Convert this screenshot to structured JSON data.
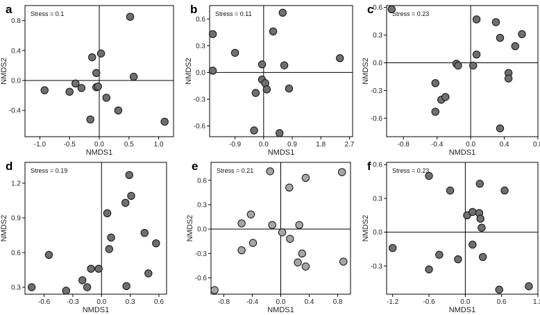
{
  "figure": {
    "point_fill_dark": "#6f6f6f",
    "point_fill_light": "#a6a6a6",
    "point_stroke": "#111111",
    "frame_color": "#000000"
  },
  "chart_data": [
    {
      "panel": "a",
      "type": "scatter",
      "stress": "Stress = 0.1",
      "xlabel": "NMDS1",
      "ylabel": "NMDS2",
      "xlim": [
        -1.25,
        1.25
      ],
      "ylim": [
        -0.75,
        1.0
      ],
      "xticks": [
        -1.0,
        -0.5,
        0.0,
        0.5,
        1.0
      ],
      "xticklabels": [
        "-1.0",
        "-0.5",
        "0.0",
        "0.5",
        "1.0"
      ],
      "yticks": [
        -0.4,
        0.0,
        0.4,
        0.8
      ],
      "yticklabels": [
        "-0.4",
        "0.0",
        "0.4",
        "0.8"
      ],
      "fill": "dark",
      "points": [
        [
          -0.92,
          -0.13
        ],
        [
          -0.5,
          -0.15
        ],
        [
          -0.4,
          -0.04
        ],
        [
          -0.3,
          -0.1
        ],
        [
          -0.15,
          -0.52
        ],
        [
          -0.12,
          0.31
        ],
        [
          -0.05,
          0.1
        ],
        [
          -0.05,
          -0.09
        ],
        [
          -0.02,
          -0.08
        ],
        [
          0.03,
          0.36
        ],
        [
          0.12,
          -0.23
        ],
        [
          0.32,
          -0.4
        ],
        [
          0.52,
          0.85
        ],
        [
          0.58,
          0.05
        ],
        [
          1.1,
          -0.55
        ]
      ]
    },
    {
      "panel": "b",
      "type": "scatter",
      "stress": "Stress = 0.11",
      "xlabel": "NMDS1",
      "ylabel": "NMDS2",
      "xlim": [
        -1.7,
        2.8
      ],
      "ylim": [
        -0.72,
        0.75
      ],
      "xticks": [
        -0.9,
        0.0,
        0.9,
        1.8,
        2.7
      ],
      "xticklabels": [
        "-0.9",
        "0.0",
        "0.9",
        "1.8",
        "2.7"
      ],
      "yticks": [
        -0.6,
        -0.3,
        0.0,
        0.3,
        0.6
      ],
      "yticklabels": [
        "-0.6",
        "-0.3",
        "0.0",
        "0.3",
        "0.6"
      ],
      "fill": "dark",
      "points": [
        [
          -1.6,
          0.43
        ],
        [
          -1.6,
          0.02
        ],
        [
          -0.9,
          0.22
        ],
        [
          -0.3,
          -0.65
        ],
        [
          -0.25,
          -0.23
        ],
        [
          -0.05,
          0.09
        ],
        [
          -0.05,
          -0.08
        ],
        [
          0.05,
          -0.12
        ],
        [
          0.1,
          -0.19
        ],
        [
          0.3,
          0.46
        ],
        [
          0.5,
          -0.68
        ],
        [
          0.6,
          0.67
        ],
        [
          0.65,
          0.08
        ],
        [
          0.8,
          -0.18
        ],
        [
          2.4,
          0.16
        ]
      ]
    },
    {
      "panel": "c",
      "type": "scatter",
      "stress": "Stress = 0.23",
      "xlabel": "NMDS1",
      "ylabel": "NMDS2",
      "xlim": [
        -1.0,
        0.8
      ],
      "ylim": [
        -0.8,
        0.62
      ],
      "xticks": [
        -0.8,
        -0.4,
        0.0,
        0.4,
        0.8
      ],
      "xticklabels": [
        "-0.8",
        "-0.4",
        "0.0",
        "0.4",
        "0.8"
      ],
      "yticks": [
        -0.6,
        -0.3,
        0.0,
        0.3,
        0.6
      ],
      "yticklabels": [
        "-0.6",
        "-0.3",
        "0.0",
        "0.3",
        "0.6"
      ],
      "fill": "dark",
      "points": [
        [
          -0.94,
          0.58
        ],
        [
          -0.42,
          -0.22
        ],
        [
          -0.42,
          -0.53
        ],
        [
          -0.35,
          -0.4
        ],
        [
          -0.3,
          -0.37
        ],
        [
          -0.17,
          -0.01
        ],
        [
          -0.15,
          -0.03
        ],
        [
          0.03,
          -0.03
        ],
        [
          0.07,
          0.47
        ],
        [
          0.07,
          0.09
        ],
        [
          0.3,
          0.44
        ],
        [
          0.35,
          0.27
        ],
        [
          0.35,
          -0.71
        ],
        [
          0.45,
          -0.11
        ],
        [
          0.45,
          -0.17
        ],
        [
          0.53,
          0.18
        ],
        [
          0.61,
          0.31
        ]
      ]
    },
    {
      "panel": "d",
      "type": "scatter",
      "stress": "Stress = 0.19",
      "xlabel": "NMDS1",
      "ylabel": "NMDS2",
      "xlim": [
        -0.8,
        0.68
      ],
      "ylim": [
        0.24,
        1.38
      ],
      "xticks": [
        -0.6,
        -0.3,
        0.0,
        0.3,
        0.6
      ],
      "xticklabels": [
        "-0.6",
        "-0.3",
        "0.0",
        "0.3",
        "0.6"
      ],
      "yticks": [
        0.3,
        0.6,
        0.9,
        1.2
      ],
      "yticklabels": [
        "0.3",
        "0.6",
        "0.9",
        "1.2"
      ],
      "fill": "dark",
      "points": [
        [
          -0.73,
          0.3
        ],
        [
          -0.55,
          0.58
        ],
        [
          -0.37,
          0.27
        ],
        [
          -0.2,
          0.36
        ],
        [
          -0.15,
          0.3
        ],
        [
          -0.11,
          0.46
        ],
        [
          -0.03,
          0.46
        ],
        [
          0.06,
          0.94
        ],
        [
          0.08,
          0.63
        ],
        [
          0.1,
          0.73
        ],
        [
          0.25,
          1.03
        ],
        [
          0.26,
          0.31
        ],
        [
          0.29,
          1.27
        ],
        [
          0.31,
          1.09
        ],
        [
          0.45,
          0.77
        ],
        [
          0.49,
          0.42
        ],
        [
          0.57,
          0.68
        ]
      ]
    },
    {
      "panel": "e",
      "type": "scatter",
      "stress": "Stress = 0.21",
      "xlabel": "NMDS1",
      "ylabel": "NMDS2",
      "xlim": [
        -0.98,
        0.98
      ],
      "ylim": [
        -0.8,
        0.82
      ],
      "xticks": [
        -0.8,
        -0.4,
        0.0,
        0.4,
        0.8
      ],
      "xticklabels": [
        "-0.8",
        "-0.4",
        "0.0",
        "0.4",
        "0.8"
      ],
      "yticks": [
        -0.6,
        -0.3,
        0.0,
        0.3,
        0.6
      ],
      "yticklabels": [
        "-0.6",
        "-0.3",
        "0.0",
        "0.3",
        "0.6"
      ],
      "fill": "light",
      "points": [
        [
          -0.93,
          -0.75
        ],
        [
          -0.55,
          0.07
        ],
        [
          -0.55,
          -0.26
        ],
        [
          -0.42,
          0.18
        ],
        [
          -0.39,
          -0.17
        ],
        [
          -0.15,
          0.71
        ],
        [
          -0.12,
          0.05
        ],
        [
          0.02,
          -0.04
        ],
        [
          0.12,
          0.51
        ],
        [
          0.13,
          -0.12
        ],
        [
          0.24,
          -0.41
        ],
        [
          0.26,
          0.05
        ],
        [
          0.3,
          -0.3
        ],
        [
          0.35,
          0.63
        ],
        [
          0.35,
          -0.46
        ],
        [
          0.86,
          0.7
        ],
        [
          0.88,
          -0.4
        ]
      ]
    },
    {
      "panel": "f",
      "type": "scatter",
      "stress": "Stress = 0.23",
      "xlabel": "NMDS1",
      "ylabel": "NMDS2",
      "xlim": [
        -1.3,
        1.2
      ],
      "ylim": [
        -0.55,
        0.62
      ],
      "xticks": [
        -1.2,
        -0.6,
        0.0,
        0.6,
        1.2
      ],
      "xticklabels": [
        "-1.2",
        "-0.6",
        "0.0",
        "0.6",
        "1.2"
      ],
      "yticks": [
        -0.3,
        0.0,
        0.3,
        0.6
      ],
      "yticklabels": [
        "-0.3",
        "0.0",
        "0.3",
        "0.6"
      ],
      "fill": "dark",
      "points": [
        [
          -1.2,
          -0.14
        ],
        [
          -0.6,
          0.5
        ],
        [
          -0.6,
          -0.33
        ],
        [
          -0.43,
          -0.2
        ],
        [
          -0.25,
          0.37
        ],
        [
          -0.12,
          -0.24
        ],
        [
          0.03,
          0.15
        ],
        [
          0.12,
          0.18
        ],
        [
          0.12,
          -0.11
        ],
        [
          0.23,
          0.17
        ],
        [
          0.24,
          0.43
        ],
        [
          0.25,
          0.12
        ],
        [
          0.27,
          0.04
        ],
        [
          0.29,
          -0.22
        ],
        [
          0.56,
          -0.51
        ],
        [
          0.65,
          0.37
        ],
        [
          1.05,
          -0.48
        ]
      ]
    }
  ]
}
